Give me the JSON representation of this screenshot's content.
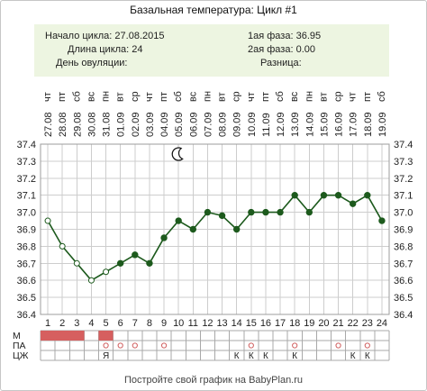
{
  "chart_data": {
    "type": "line",
    "title": "Базальная температура: Цикл #1",
    "x": [
      1,
      2,
      3,
      4,
      5,
      6,
      7,
      8,
      9,
      10,
      11,
      12,
      13,
      14,
      15,
      16,
      17,
      18,
      19,
      20,
      21,
      22,
      23,
      24
    ],
    "x_tick_labels": [
      "1",
      "2",
      "3",
      "4",
      "5",
      "6",
      "7",
      "8",
      "9",
      "10",
      "11",
      "12",
      "13",
      "14",
      "15",
      "16",
      "17",
      "18",
      "19",
      "20",
      "21",
      "22",
      "23",
      "24"
    ],
    "weekdays": [
      "чт",
      "пт",
      "сб",
      "вс",
      "пн",
      "вт",
      "ср",
      "чт",
      "пт",
      "сб",
      "вс",
      "пн",
      "вт",
      "ср",
      "чт",
      "пт",
      "сб",
      "вс",
      "пн",
      "вт",
      "ср",
      "чт",
      "пт",
      "сб"
    ],
    "dates": [
      "27.08",
      "28.08",
      "29.08",
      "30.08",
      "31.08",
      "01.09",
      "02.09",
      "03.09",
      "04.09",
      "05.09",
      "06.09",
      "07.09",
      "08.09",
      "09.09",
      "10.09",
      "11.09",
      "12.09",
      "13.09",
      "14.09",
      "15.09",
      "16.09",
      "17.09",
      "18.09",
      "19.09"
    ],
    "ylim": [
      36.4,
      37.4
    ],
    "y_tick_labels": [
      "37.4",
      "37.3",
      "37.2",
      "37.1",
      "37.0",
      "36.9",
      "36.8",
      "36.7",
      "36.6",
      "36.5",
      "36.4"
    ],
    "grid": true,
    "series": [
      {
        "values": [
          36.95,
          36.8,
          36.7,
          36.6,
          36.65,
          36.7,
          36.75,
          36.7,
          36.85,
          36.95,
          36.9,
          37.0,
          36.98,
          36.9,
          37.0,
          37.0,
          37.0,
          37.1,
          37.0,
          37.1,
          37.1,
          37.05,
          37.1,
          36.95
        ],
        "hollow_marker_days": [
          1,
          2,
          3,
          4,
          5
        ]
      }
    ],
    "annotations": [
      {
        "day": 10,
        "icon": "moon-icon"
      }
    ]
  },
  "summary": {
    "cycle_start": {
      "label": "Начало цикла:",
      "value": "27.08.2015"
    },
    "cycle_length": {
      "label": "Длина цикла:",
      "value": "24"
    },
    "ovulation_day": {
      "label": "День овуляции:"
    },
    "phase_1": {
      "label": "1ая фаза:",
      "value": "36.95"
    },
    "phase_2": {
      "label": "2ая фаза:",
      "value": "0.00"
    },
    "difference": {
      "label": "Разница:"
    }
  },
  "tracking": {
    "menstruation": {
      "label": "М",
      "days": [
        1,
        2,
        3,
        5
      ]
    },
    "intercourse": {
      "label": "ПА",
      "icon": "circle-icon",
      "days": [
        5,
        6,
        7,
        9,
        15,
        18,
        21,
        23
      ]
    },
    "cervical_fluid": {
      "label": "ЦЖ",
      "entries": [
        {
          "day": 5,
          "symbol": "Я"
        },
        {
          "day": 14,
          "symbol": "К"
        },
        {
          "day": 15,
          "symbol": "К"
        },
        {
          "day": 16,
          "symbol": "К"
        },
        {
          "day": 18,
          "symbol": "К"
        },
        {
          "day": 22,
          "symbol": "К"
        },
        {
          "day": 23,
          "symbol": "К"
        }
      ]
    }
  },
  "colors": {
    "series": "#1d5a1d",
    "menstruation": "#d65f5f",
    "intercourse": "#d06060",
    "info_panel": "#edf5e1"
  },
  "footer": "Постройте свой график на BabyPlan.ru"
}
